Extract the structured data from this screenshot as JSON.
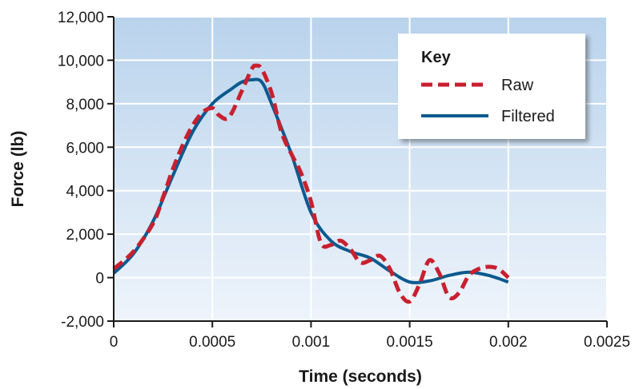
{
  "chart_data": {
    "type": "line",
    "title": "",
    "xlabel": "Time (seconds)",
    "ylabel": "Force (lb)",
    "xlim": [
      0,
      0.0025
    ],
    "ylim": [
      -2000,
      12000
    ],
    "x_ticks": [
      0,
      0.0005,
      0.001,
      0.0015,
      0.002,
      0.0025
    ],
    "x_tick_labels": [
      "0",
      "0.0005",
      "0.001",
      "0.0015",
      "0.002",
      "0.0025"
    ],
    "y_ticks": [
      -2000,
      0,
      2000,
      4000,
      6000,
      8000,
      10000,
      12000
    ],
    "y_tick_labels": [
      "-2,000",
      "0",
      "2,000",
      "4,000",
      "6,000",
      "8,000",
      "10,000",
      "12,000"
    ],
    "grid": true,
    "legend": {
      "title": "Key",
      "placement": "top-right"
    },
    "series": [
      {
        "name": "Raw",
        "color": "#c8202f",
        "style": "dashed",
        "points": [
          [
            0,
            400
          ],
          [
            0.0001,
            1200
          ],
          [
            0.0002,
            2500
          ],
          [
            0.00025,
            3700
          ],
          [
            0.0003,
            5000
          ],
          [
            0.00035,
            6100
          ],
          [
            0.0004,
            7000
          ],
          [
            0.00045,
            7600
          ],
          [
            0.0005,
            7800
          ],
          [
            0.00053,
            7500
          ],
          [
            0.00057,
            7300
          ],
          [
            0.0006,
            7600
          ],
          [
            0.00065,
            8600
          ],
          [
            0.0007,
            9600
          ],
          [
            0.00072,
            9750
          ],
          [
            0.00075,
            9600
          ],
          [
            0.0008,
            8500
          ],
          [
            0.00085,
            6700
          ],
          [
            0.0009,
            5700
          ],
          [
            0.00095,
            4800
          ],
          [
            0.001,
            3500
          ],
          [
            0.00105,
            1600
          ],
          [
            0.0011,
            1500
          ],
          [
            0.00115,
            1700
          ],
          [
            0.0012,
            1300
          ],
          [
            0.00125,
            700
          ],
          [
            0.0013,
            800
          ],
          [
            0.00135,
            1000
          ],
          [
            0.0014,
            400
          ],
          [
            0.00145,
            -700
          ],
          [
            0.0015,
            -1100
          ],
          [
            0.00155,
            -300
          ],
          [
            0.0016,
            800
          ],
          [
            0.00165,
            200
          ],
          [
            0.0017,
            -900
          ],
          [
            0.00175,
            -700
          ],
          [
            0.0018,
            100
          ],
          [
            0.00185,
            400
          ],
          [
            0.0019,
            500
          ],
          [
            0.00195,
            400
          ],
          [
            0.002,
            0
          ]
        ]
      },
      {
        "name": "Filtered",
        "color": "#0b5a8f",
        "style": "solid",
        "points": [
          [
            0,
            200
          ],
          [
            0.0001,
            1100
          ],
          [
            0.0002,
            2600
          ],
          [
            0.0003,
            4700
          ],
          [
            0.0004,
            6700
          ],
          [
            0.0005,
            8000
          ],
          [
            0.0006,
            8700
          ],
          [
            0.00065,
            9000
          ],
          [
            0.0007,
            9100
          ],
          [
            0.00075,
            9000
          ],
          [
            0.0008,
            8000
          ],
          [
            0.0009,
            5700
          ],
          [
            0.001,
            3000
          ],
          [
            0.0011,
            1700
          ],
          [
            0.0012,
            1200
          ],
          [
            0.0013,
            900
          ],
          [
            0.0014,
            300
          ],
          [
            0.0015,
            -200
          ],
          [
            0.0016,
            -150
          ],
          [
            0.0017,
            100
          ],
          [
            0.0018,
            250
          ],
          [
            0.0019,
            100
          ],
          [
            0.002,
            -200
          ]
        ]
      }
    ]
  }
}
